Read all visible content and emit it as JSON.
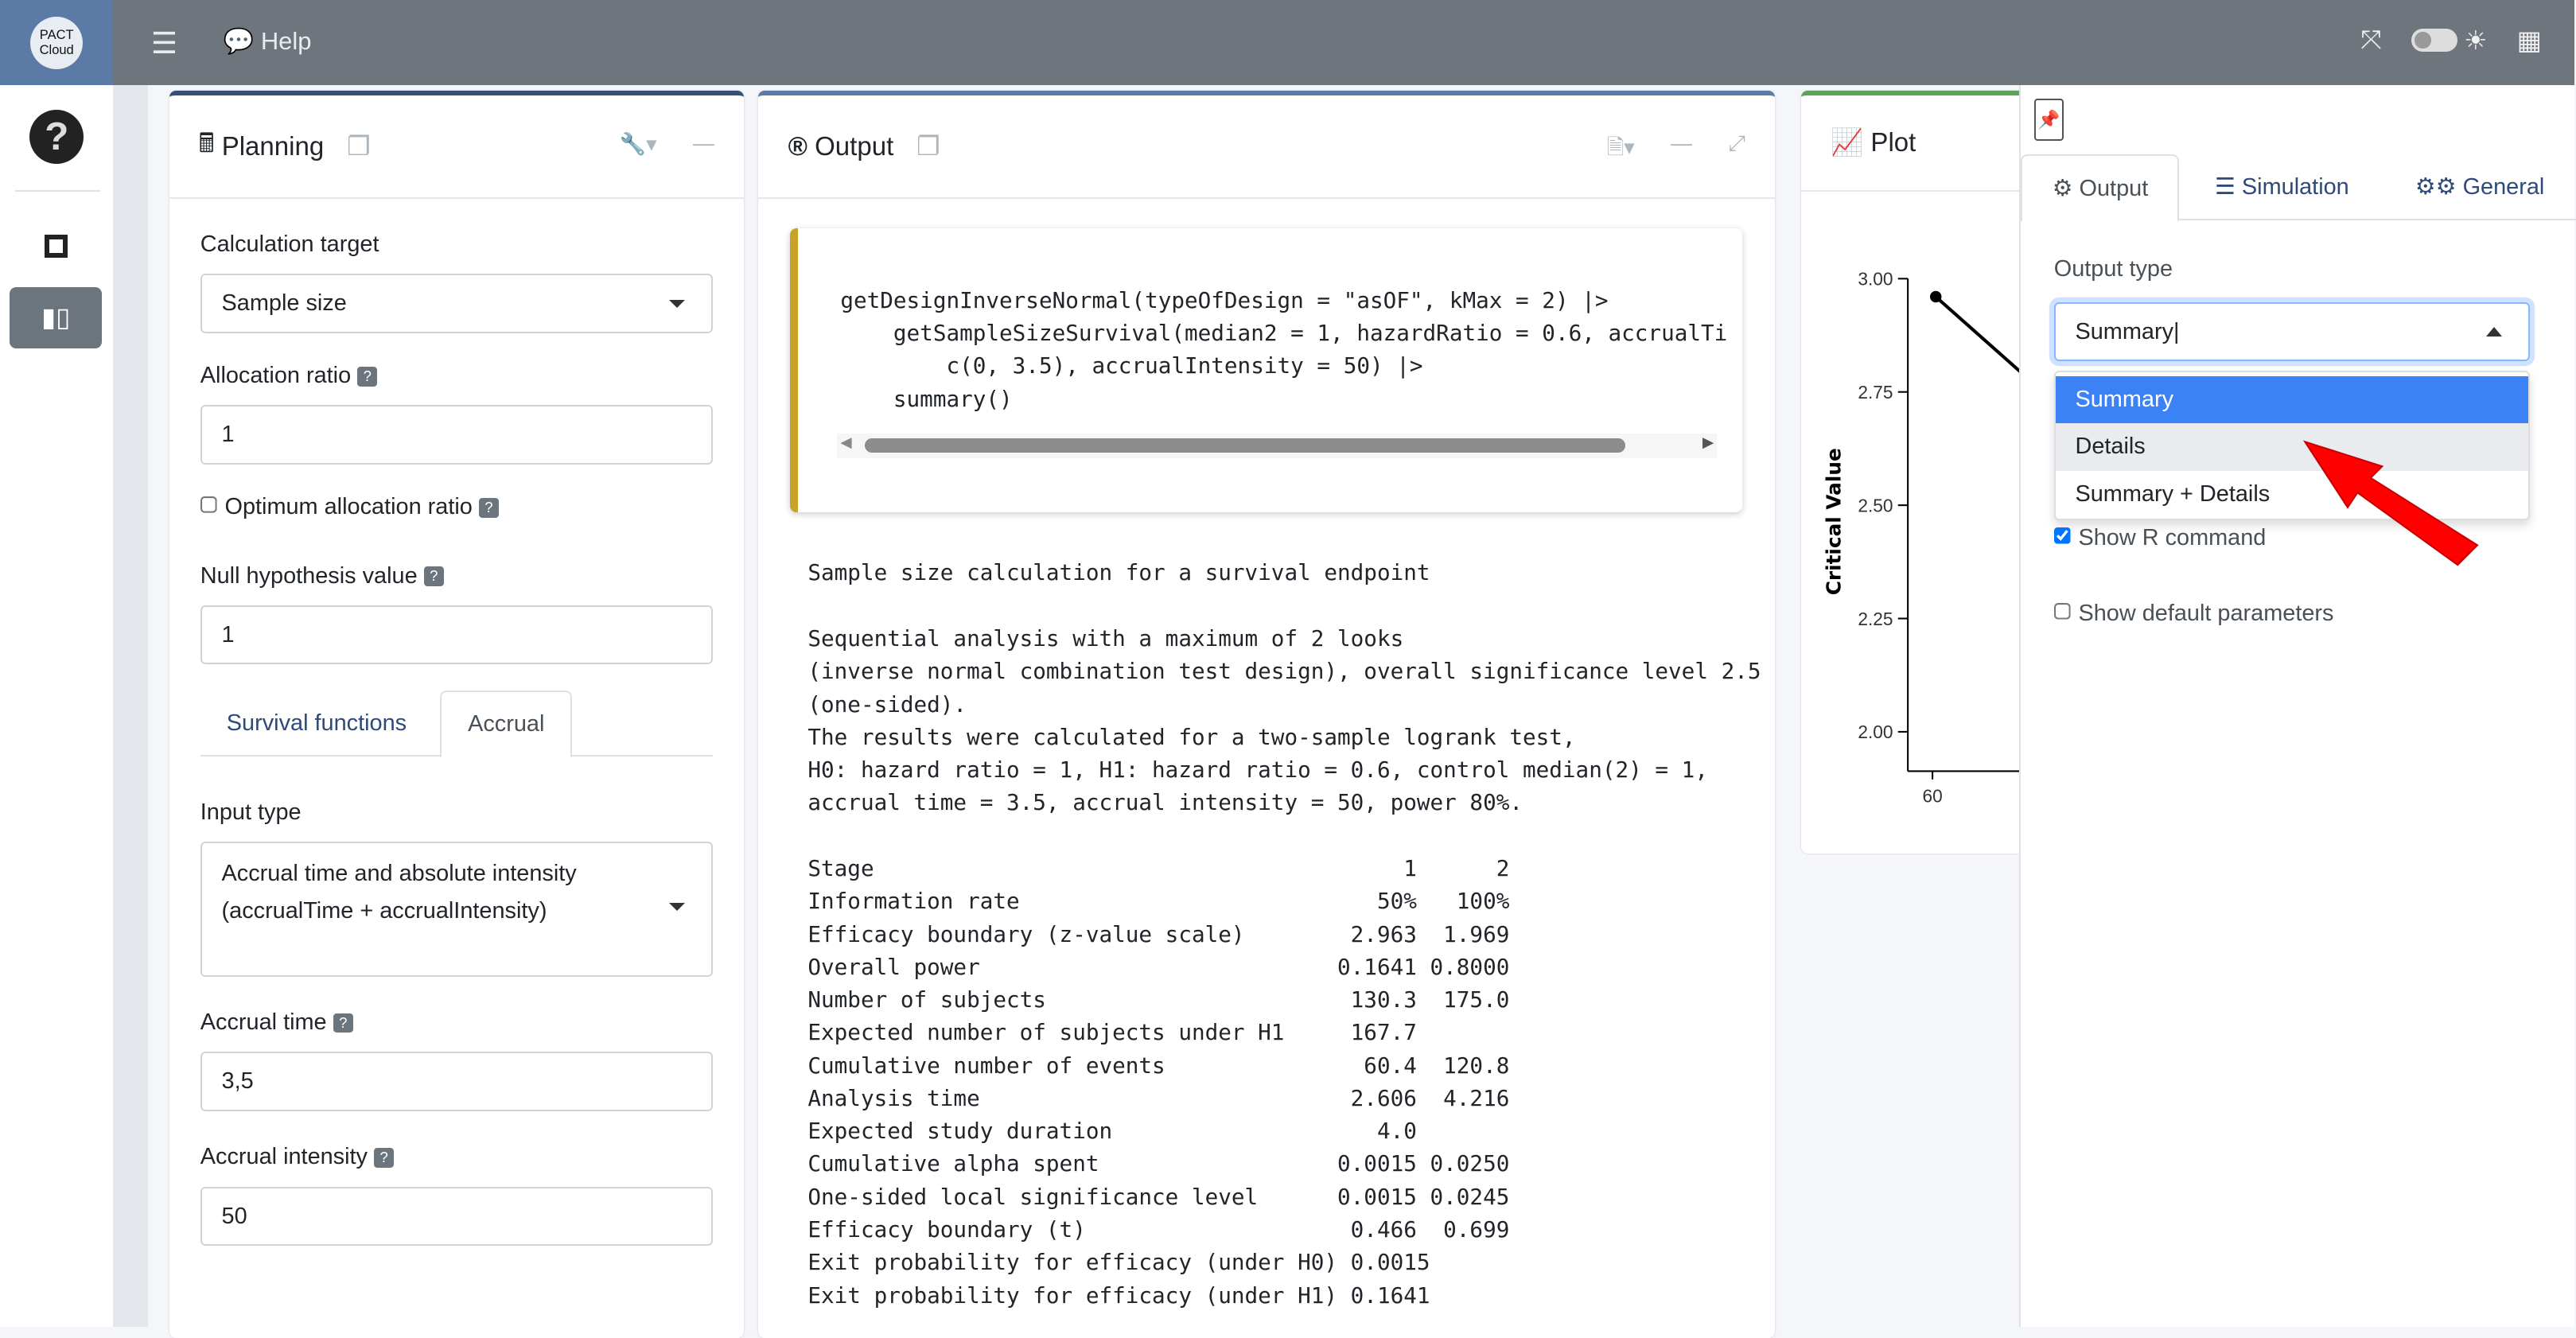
{
  "topbar": {
    "logo_text_1": "PACT",
    "logo_text_2": "Cloud",
    "help": "Help"
  },
  "planning": {
    "title": "Planning",
    "calc_target_label": "Calculation target",
    "calc_target_value": "Sample size",
    "alloc_label": "Allocation ratio",
    "alloc_value": "1",
    "opt_alloc_label": "Optimum allocation ratio",
    "null_label": "Null hypothesis value",
    "null_value": "1",
    "tabs": [
      "Survival functions",
      "Accrual"
    ],
    "input_type_label": "Input type",
    "input_type_value_1": "Accrual time and absolute intensity",
    "input_type_value_2": "(accrualTime + accrualIntensity)",
    "accrual_time_label": "Accrual time",
    "accrual_time_value": "3,5",
    "accrual_int_label": "Accrual intensity",
    "accrual_int_value": "50"
  },
  "output": {
    "title": "Output",
    "code": "getDesignInverseNormal(typeOfDesign = \"asOF\", kMax = 2) |>\n    getSampleSizeSurvival(median2 = 1, hazardRatio = 0.6, accrualTi\n        c(0, 3.5), accrualIntensity = 50) |>\n    summary()",
    "text": "Sample size calculation for a survival endpoint\n\nSequential analysis with a maximum of 2 looks\n(inverse normal combination test design), overall significance level 2.5\n(one-sided).\nThe results were calculated for a two-sample logrank test,\nH0: hazard ratio = 1, H1: hazard ratio = 0.6, control median(2) = 1,\naccrual time = 3.5, accrual intensity = 50, power 80%.\n\nStage                                        1      2\nInformation rate                           50%   100%\nEfficacy boundary (z-value scale)        2.963  1.969\nOverall power                           0.1641 0.8000\nNumber of subjects                       130.3  175.0\nExpected number of subjects under H1     167.7\nCumulative number of events               60.4  120.8\nAnalysis time                            2.606  4.216\nExpected study duration                    4.0\nCumulative alpha spent                  0.0015 0.0250\nOne-sided local significance level      0.0015 0.0245\nEfficacy boundary (t)                    0.466  0.699\nExit probability for efficacy (under H0) 0.0015\nExit probability for efficacy (under H1) 0.1641"
  },
  "plot": {
    "title": "Plot",
    "ylabel": "Critical Value",
    "yticks": [
      "3.00",
      "2.75",
      "2.50",
      "2.25",
      "2.00"
    ],
    "xtick": "60"
  },
  "sidebar": {
    "tabs": [
      "Output",
      "Simulation",
      "General"
    ],
    "output_type_label": "Output type",
    "output_type_value": "Summary",
    "options": [
      "Summary",
      "Details",
      "Summary + Details"
    ],
    "show_r": "Show R command",
    "show_default": "Show default parameters"
  },
  "colors": {
    "topbar": "#6e757c",
    "selected_option": "#3b82f6",
    "accent_arrow": "#ff0000"
  }
}
